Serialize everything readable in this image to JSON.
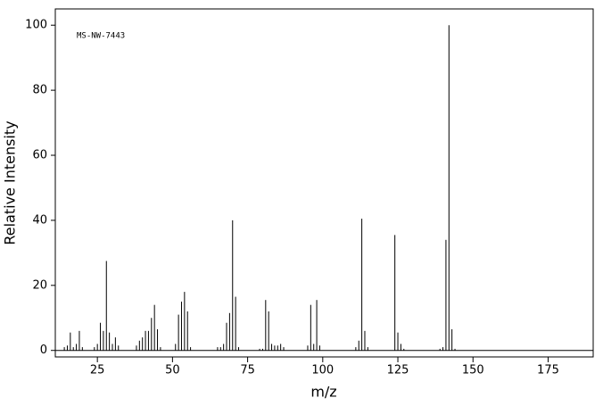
{
  "chart_data": {
    "type": "stem",
    "annotation": "MS-NW-7443",
    "x_label": "m/z",
    "y_label": "Relative Intensity",
    "x": [
      14,
      15,
      16,
      17,
      18,
      19,
      20,
      24,
      25,
      26,
      27,
      28,
      29,
      30,
      31,
      32,
      38,
      39,
      40,
      41,
      42,
      43,
      44,
      45,
      46,
      51,
      52,
      53,
      54,
      55,
      56,
      65,
      66,
      67,
      68,
      69,
      70,
      71,
      72,
      79,
      80,
      81,
      82,
      83,
      84,
      85,
      86,
      87,
      95,
      96,
      97,
      98,
      99,
      111,
      112,
      113,
      114,
      115,
      124,
      125,
      126,
      127,
      139,
      140,
      141,
      142,
      143,
      144
    ],
    "values": [
      1,
      1.5,
      5.5,
      1,
      2,
      6,
      1,
      1,
      2,
      8.5,
      6,
      27.5,
      5.5,
      2,
      4,
      1.5,
      1.5,
      3,
      4,
      6,
      6,
      10,
      14,
      6.5,
      1,
      2,
      11,
      15,
      18,
      12,
      1,
      1,
      1,
      2,
      8.5,
      11.5,
      40,
      16.5,
      1,
      0.5,
      0.5,
      15.5,
      12,
      2,
      1.5,
      1.5,
      2,
      1,
      1.5,
      14,
      2,
      15.5,
      1.5,
      1,
      3,
      40.5,
      6,
      1,
      35.5,
      5.5,
      2,
      0.5,
      0.5,
      1,
      34,
      100,
      6.5,
      0.5
    ],
    "color": "#000000",
    "xlim": [
      11,
      190
    ],
    "ylim": [
      -2,
      105
    ],
    "xticks": [
      25,
      50,
      75,
      100,
      125,
      150,
      175
    ],
    "yticks": [
      0,
      20,
      40,
      60,
      80,
      100
    ]
  }
}
